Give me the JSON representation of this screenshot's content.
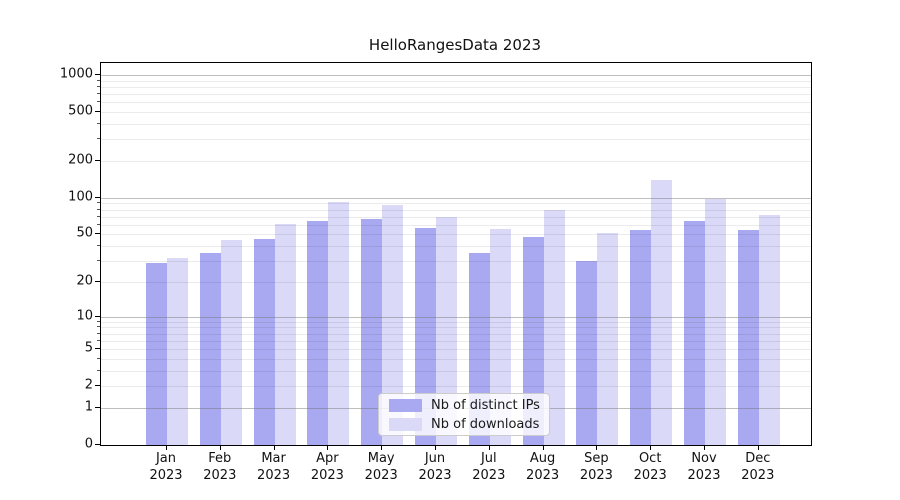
{
  "title": "HelloRangesData 2023",
  "chart_data": {
    "type": "bar",
    "title": "HelloRangesData 2023",
    "months": [
      "Jan",
      "Feb",
      "Mar",
      "Apr",
      "May",
      "Jun",
      "Jul",
      "Aug",
      "Sep",
      "Oct",
      "Nov",
      "Dec"
    ],
    "year_label": "2023",
    "series": [
      {
        "name": "Nb of distinct IPs",
        "color": "#a9a9f1",
        "values": [
          29,
          35,
          46,
          65,
          67,
          57,
          35,
          48,
          30,
          54,
          65,
          54
        ]
      },
      {
        "name": "Nb of downloads",
        "color": "#dadaf8",
        "values": [
          32,
          45,
          61,
          93,
          88,
          70,
          55,
          80,
          51,
          140,
          98,
          72
        ]
      }
    ],
    "yscale": "log10(1+v)",
    "yticks": [
      0,
      1,
      2,
      5,
      10,
      20,
      50,
      100,
      200,
      500,
      1000
    ],
    "ylim": [
      0,
      1250
    ],
    "grid": true,
    "legend_position": "lower center",
    "axis_color": "#000000",
    "major_grid_values": [
      1,
      10,
      100,
      1000
    ]
  }
}
